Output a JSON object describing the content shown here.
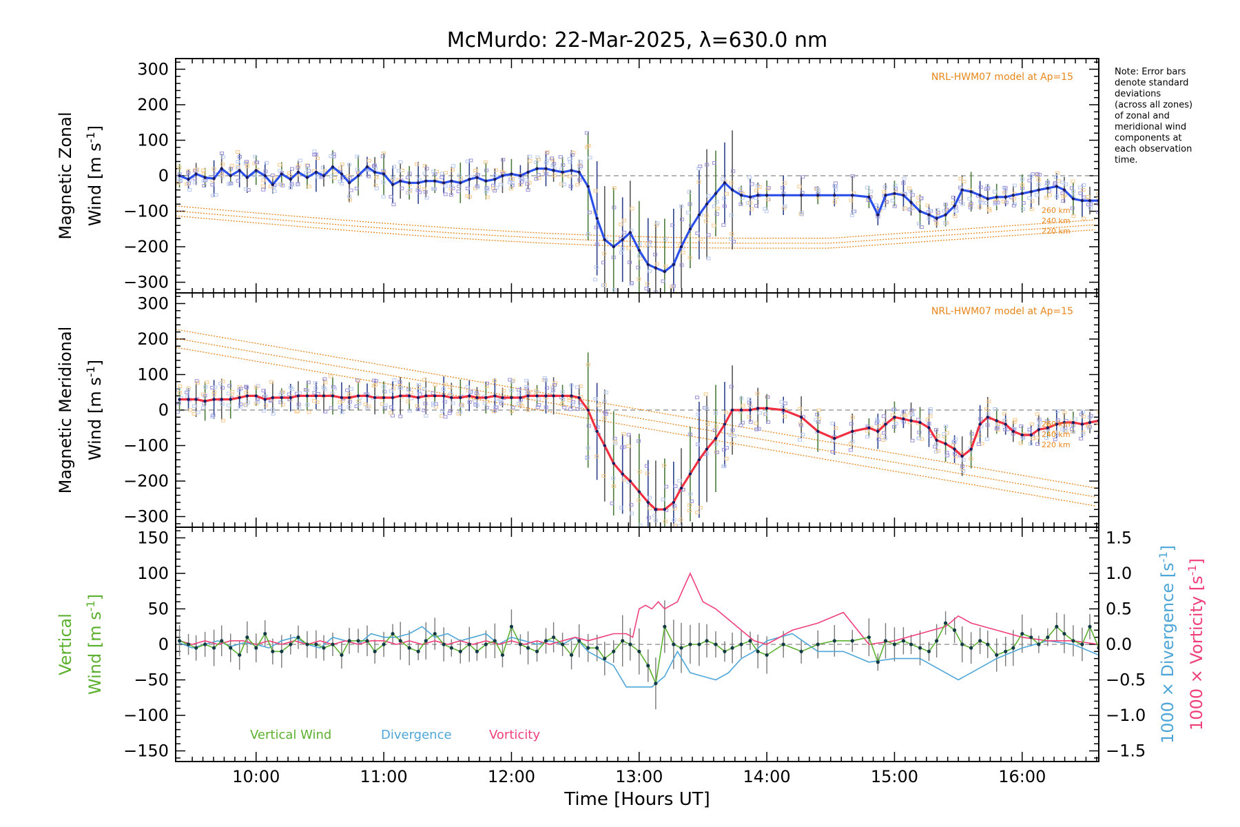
{
  "chart_data": {
    "title": "McMurdo: 22-Mar-2025, λ=630.0 nm",
    "xlabel": "Time [Hours UT]",
    "xlim": [
      9.37,
      16.6
    ],
    "xticks": [
      "10:00",
      "11:00",
      "12:00",
      "13:00",
      "14:00",
      "15:00",
      "16:00"
    ],
    "xtick_values": [
      10,
      11,
      12,
      13,
      14,
      15,
      16
    ],
    "note": [
      "Note: Error bars",
      "denote standard",
      "deviations",
      "(across all zones)",
      "of zonal and",
      "meridional wind",
      "components at",
      "each observation",
      "time."
    ],
    "colors": {
      "zonal": "#2a4fe8",
      "meridional": "#f03040",
      "model": "#e8861a",
      "vertical": "#5cb030",
      "divergence": "#4ea6d8",
      "vorticity": "#f0407a",
      "scatter": "#9a90d8"
    },
    "panels": [
      {
        "type": "line",
        "ylabel_line1": "Magnetic Zonal",
        "ylabel_line2": "Wind [m s",
        "ylabel_sup": "-1",
        "ylabel_end": "]",
        "ylim": [
          -330,
          330
        ],
        "yticks": [
          -300,
          -200,
          -100,
          0,
          100,
          200,
          300
        ],
        "model_label": "NRL-HWM07 model at Ap=15",
        "model_altitudes": [
          "260 km",
          "240 km",
          "220 km"
        ],
        "series": {
          "name": "Magnetic Zonal Wind",
          "x": [
            9.4,
            9.47,
            9.53,
            9.6,
            9.67,
            9.73,
            9.8,
            9.87,
            9.93,
            10.0,
            10.07,
            10.13,
            10.2,
            10.27,
            10.33,
            10.4,
            10.47,
            10.53,
            10.6,
            10.67,
            10.73,
            10.8,
            10.87,
            10.93,
            11.0,
            11.07,
            11.13,
            11.2,
            11.27,
            11.33,
            11.4,
            11.47,
            11.53,
            11.6,
            11.67,
            11.73,
            11.8,
            11.87,
            11.93,
            12.0,
            12.07,
            12.13,
            12.2,
            12.27,
            12.33,
            12.4,
            12.47,
            12.53,
            12.6,
            12.67,
            12.73,
            12.8,
            12.87,
            12.93,
            13.0,
            13.07,
            13.13,
            13.2,
            13.27,
            13.33,
            13.4,
            13.47,
            13.53,
            13.6,
            13.67,
            13.73,
            13.8,
            13.87,
            13.93,
            14.0,
            14.13,
            14.27,
            14.4,
            14.53,
            14.67,
            14.8,
            14.87,
            14.93,
            15.0,
            15.07,
            15.13,
            15.2,
            15.27,
            15.33,
            15.4,
            15.47,
            15.53,
            15.6,
            15.67,
            15.73,
            15.8,
            15.87,
            15.93,
            16.0,
            16.07,
            16.13,
            16.2,
            16.27,
            16.33,
            16.4,
            16.47,
            16.53,
            16.6
          ],
          "y": [
            0,
            -10,
            5,
            -5,
            -8,
            20,
            0,
            15,
            -5,
            15,
            0,
            -25,
            5,
            -10,
            10,
            -5,
            10,
            0,
            25,
            5,
            -20,
            0,
            25,
            10,
            5,
            -25,
            -15,
            -20,
            -20,
            -15,
            -15,
            -20,
            -15,
            -20,
            -10,
            -5,
            -15,
            -10,
            0,
            5,
            0,
            10,
            20,
            20,
            15,
            10,
            15,
            10,
            -30,
            -120,
            -180,
            -200,
            -180,
            -160,
            -210,
            -250,
            -260,
            -270,
            -250,
            -200,
            -150,
            -110,
            -80,
            -50,
            -20,
            -40,
            -55,
            -60,
            -55,
            -55,
            -55,
            -55,
            -55,
            -55,
            -55,
            -60,
            -110,
            -55,
            -50,
            -55,
            -75,
            -100,
            -110,
            -120,
            -110,
            -85,
            -40,
            -45,
            -55,
            -65,
            -60,
            -60,
            -55,
            -50,
            -45,
            -40,
            -35,
            -30,
            -40,
            -65,
            -70,
            -70,
            -70
          ]
        }
      },
      {
        "type": "line",
        "ylabel_line1": "Magnetic Meridional",
        "ylabel_line2": "Wind [m s",
        "ylabel_sup": "-1",
        "ylabel_end": "]",
        "ylim": [
          -330,
          330
        ],
        "yticks": [
          -300,
          -200,
          -100,
          0,
          100,
          200,
          300
        ],
        "model_label": "NRL-HWM07 model at Ap=15",
        "model_altitudes": [
          "260 km",
          "240 km",
          "220 km"
        ],
        "series": {
          "name": "Magnetic Meridional Wind",
          "x": [
            9.4,
            9.47,
            9.53,
            9.6,
            9.67,
            9.73,
            9.8,
            9.87,
            9.93,
            10.0,
            10.07,
            10.13,
            10.2,
            10.27,
            10.33,
            10.4,
            10.47,
            10.53,
            10.6,
            10.67,
            10.73,
            10.8,
            10.87,
            10.93,
            11.0,
            11.07,
            11.13,
            11.2,
            11.27,
            11.33,
            11.4,
            11.47,
            11.53,
            11.6,
            11.67,
            11.73,
            11.8,
            11.87,
            11.93,
            12.0,
            12.07,
            12.13,
            12.2,
            12.27,
            12.33,
            12.4,
            12.47,
            12.53,
            12.6,
            12.67,
            12.73,
            12.8,
            12.87,
            12.93,
            13.0,
            13.07,
            13.13,
            13.2,
            13.27,
            13.33,
            13.4,
            13.47,
            13.53,
            13.6,
            13.67,
            13.73,
            13.8,
            13.87,
            13.93,
            14.0,
            14.13,
            14.27,
            14.4,
            14.53,
            14.67,
            14.8,
            14.87,
            14.93,
            15.0,
            15.07,
            15.13,
            15.2,
            15.27,
            15.33,
            15.4,
            15.47,
            15.53,
            15.6,
            15.67,
            15.73,
            15.8,
            15.87,
            15.93,
            16.0,
            16.07,
            16.13,
            16.2,
            16.27,
            16.33,
            16.4,
            16.47,
            16.53,
            16.6
          ],
          "y": [
            30,
            30,
            30,
            25,
            30,
            30,
            30,
            35,
            40,
            40,
            30,
            35,
            35,
            35,
            40,
            40,
            40,
            40,
            40,
            35,
            35,
            40,
            40,
            35,
            35,
            35,
            40,
            40,
            35,
            40,
            40,
            40,
            35,
            35,
            40,
            35,
            35,
            40,
            35,
            35,
            35,
            40,
            40,
            40,
            40,
            40,
            40,
            35,
            0,
            -60,
            -100,
            -150,
            -180,
            -200,
            -230,
            -260,
            -280,
            -280,
            -260,
            -220,
            -180,
            -140,
            -110,
            -80,
            -40,
            0,
            0,
            0,
            5,
            5,
            0,
            -20,
            -60,
            -80,
            -60,
            -50,
            -60,
            -40,
            -20,
            -25,
            -30,
            -35,
            -50,
            -85,
            -95,
            -110,
            -130,
            -110,
            -40,
            -20,
            -30,
            -40,
            -60,
            -70,
            -70,
            -55,
            -50,
            -40,
            -35,
            -35,
            -40,
            -35,
            -30
          ]
        }
      },
      {
        "type": "line",
        "ylabel_line1": "Vertical",
        "ylabel_line2": "Wind [m s",
        "ylabel_sup": "-1",
        "ylabel_end": "]",
        "ylim": [
          -165,
          165
        ],
        "yticks": [
          -150,
          -100,
          -50,
          0,
          50,
          100,
          150
        ],
        "y2label_a": "1000 × Divergence [s",
        "y2label_b": "1000 × Vorticity [s",
        "y2label_sup": "-1",
        "y2label_end": "]",
        "y2lim": [
          -1.65,
          1.65
        ],
        "y2ticks": [
          -1.5,
          -1.0,
          -0.5,
          0.0,
          0.5,
          1.0,
          1.5
        ],
        "legend": [
          "Vertical Wind",
          "Divergence",
          "Vorticity"
        ],
        "series": [
          {
            "name": "Vertical Wind",
            "x": [
              9.4,
              9.47,
              9.53,
              9.6,
              9.67,
              9.73,
              9.8,
              9.87,
              9.93,
              10.0,
              10.07,
              10.13,
              10.2,
              10.27,
              10.33,
              10.4,
              10.47,
              10.53,
              10.6,
              10.67,
              10.73,
              10.8,
              10.87,
              10.93,
              11.0,
              11.07,
              11.13,
              11.2,
              11.27,
              11.33,
              11.4,
              11.47,
              11.53,
              11.6,
              11.67,
              11.73,
              11.8,
              11.87,
              11.93,
              12.0,
              12.07,
              12.13,
              12.2,
              12.27,
              12.33,
              12.4,
              12.47,
              12.53,
              12.6,
              12.67,
              12.73,
              12.8,
              12.87,
              12.93,
              13.0,
              13.07,
              13.13,
              13.2,
              13.27,
              13.33,
              13.4,
              13.47,
              13.53,
              13.6,
              13.67,
              13.73,
              13.8,
              13.87,
              13.93,
              14.0,
              14.13,
              14.27,
              14.4,
              14.53,
              14.67,
              14.8,
              14.87,
              14.93,
              15.0,
              15.07,
              15.13,
              15.2,
              15.27,
              15.33,
              15.4,
              15.47,
              15.53,
              15.6,
              15.67,
              15.73,
              15.8,
              15.87,
              15.93,
              16.0,
              16.07,
              16.13,
              16.2,
              16.27,
              16.33,
              16.4,
              16.47,
              16.53,
              16.6
            ],
            "y": [
              5,
              0,
              -5,
              0,
              -5,
              5,
              -5,
              -15,
              10,
              -5,
              15,
              -10,
              -10,
              0,
              10,
              0,
              0,
              -5,
              0,
              -15,
              5,
              5,
              5,
              -10,
              0,
              15,
              5,
              -5,
              -10,
              5,
              15,
              0,
              -5,
              -10,
              0,
              -10,
              0,
              5,
              -15,
              25,
              0,
              -5,
              -10,
              5,
              10,
              0,
              -15,
              5,
              -5,
              -5,
              -20,
              -10,
              5,
              0,
              -10,
              -30,
              -55,
              25,
              0,
              -5,
              0,
              0,
              5,
              0,
              -10,
              -5,
              0,
              5,
              -10,
              -15,
              0,
              -10,
              0,
              5,
              5,
              10,
              -25,
              5,
              0,
              5,
              0,
              -5,
              -10,
              5,
              30,
              20,
              0,
              -5,
              5,
              0,
              -15,
              -10,
              -5,
              15,
              10,
              0,
              10,
              25,
              15,
              5,
              0,
              25,
              -5
            ]
          },
          {
            "name": "Divergence",
            "x": [
              9.4,
              9.5,
              9.6,
              9.7,
              9.8,
              9.9,
              10.0,
              10.1,
              10.2,
              10.3,
              10.4,
              10.5,
              10.6,
              10.7,
              10.8,
              10.9,
              11.0,
              11.1,
              11.2,
              11.3,
              11.4,
              11.5,
              11.6,
              11.7,
              11.8,
              11.9,
              12.0,
              12.1,
              12.2,
              12.3,
              12.4,
              12.5,
              12.6,
              12.7,
              12.8,
              12.9,
              13.0,
              13.1,
              13.2,
              13.3,
              13.4,
              13.5,
              13.6,
              13.7,
              13.8,
              13.9,
              14.0,
              14.2,
              14.4,
              14.6,
              14.8,
              15.0,
              15.2,
              15.4,
              15.5,
              15.6,
              15.8,
              16.0,
              16.2,
              16.4,
              16.6
            ],
            "y": [
              0.02,
              -0.05,
              0.0,
              0.05,
              -0.03,
              0.02,
              0.0,
              -0.05,
              0.05,
              0.1,
              0.0,
              -0.05,
              0.1,
              0.05,
              0.0,
              0.15,
              0.1,
              0.1,
              0.15,
              0.25,
              0.1,
              0.15,
              0.05,
              0.1,
              0.15,
              0.0,
              0.1,
              0.05,
              0.0,
              0.05,
              0.0,
              0.1,
              -0.1,
              -0.2,
              -0.3,
              -0.6,
              -0.6,
              -0.6,
              -0.45,
              -0.1,
              -0.4,
              -0.45,
              -0.5,
              -0.4,
              -0.2,
              -0.1,
              0.05,
              0.15,
              -0.1,
              -0.1,
              -0.25,
              -0.2,
              -0.2,
              -0.4,
              -0.5,
              -0.4,
              -0.2,
              -0.05,
              0.05,
              0.0,
              -0.15
            ]
          },
          {
            "name": "Vorticity",
            "x": [
              9.4,
              9.5,
              9.6,
              9.7,
              9.8,
              9.9,
              10.0,
              10.1,
              10.2,
              10.3,
              10.4,
              10.5,
              10.6,
              10.7,
              10.8,
              10.9,
              11.0,
              11.1,
              11.2,
              11.3,
              11.4,
              11.5,
              11.6,
              11.7,
              11.8,
              11.9,
              12.0,
              12.1,
              12.2,
              12.3,
              12.4,
              12.5,
              12.6,
              12.7,
              12.8,
              12.9,
              12.95,
              13.0,
              13.05,
              13.1,
              13.15,
              13.2,
              13.25,
              13.3,
              13.35,
              13.4,
              13.45,
              13.5,
              13.6,
              13.7,
              13.8,
              13.9,
              14.0,
              14.2,
              14.4,
              14.6,
              14.8,
              15.0,
              15.2,
              15.4,
              15.5,
              15.6,
              15.8,
              16.0,
              16.2,
              16.4,
              16.6
            ],
            "y": [
              0.05,
              0.0,
              0.05,
              0.0,
              0.05,
              0.05,
              0.0,
              0.05,
              0.0,
              0.05,
              0.0,
              0.05,
              0.0,
              0.05,
              0.0,
              0.05,
              0.05,
              0.0,
              0.05,
              0.0,
              0.05,
              0.0,
              0.05,
              0.0,
              0.05,
              0.0,
              0.05,
              0.0,
              0.05,
              0.0,
              0.05,
              0.1,
              0.05,
              0.1,
              0.15,
              0.15,
              0.1,
              0.5,
              0.55,
              0.5,
              0.6,
              0.5,
              0.55,
              0.6,
              0.8,
              1.0,
              0.8,
              0.6,
              0.5,
              0.35,
              0.2,
              0.05,
              0.0,
              0.2,
              0.3,
              0.45,
              0.0,
              0.05,
              0.15,
              0.25,
              0.4,
              0.3,
              0.2,
              0.1,
              0.05,
              0.05,
              0.0
            ]
          }
        ]
      }
    ]
  }
}
